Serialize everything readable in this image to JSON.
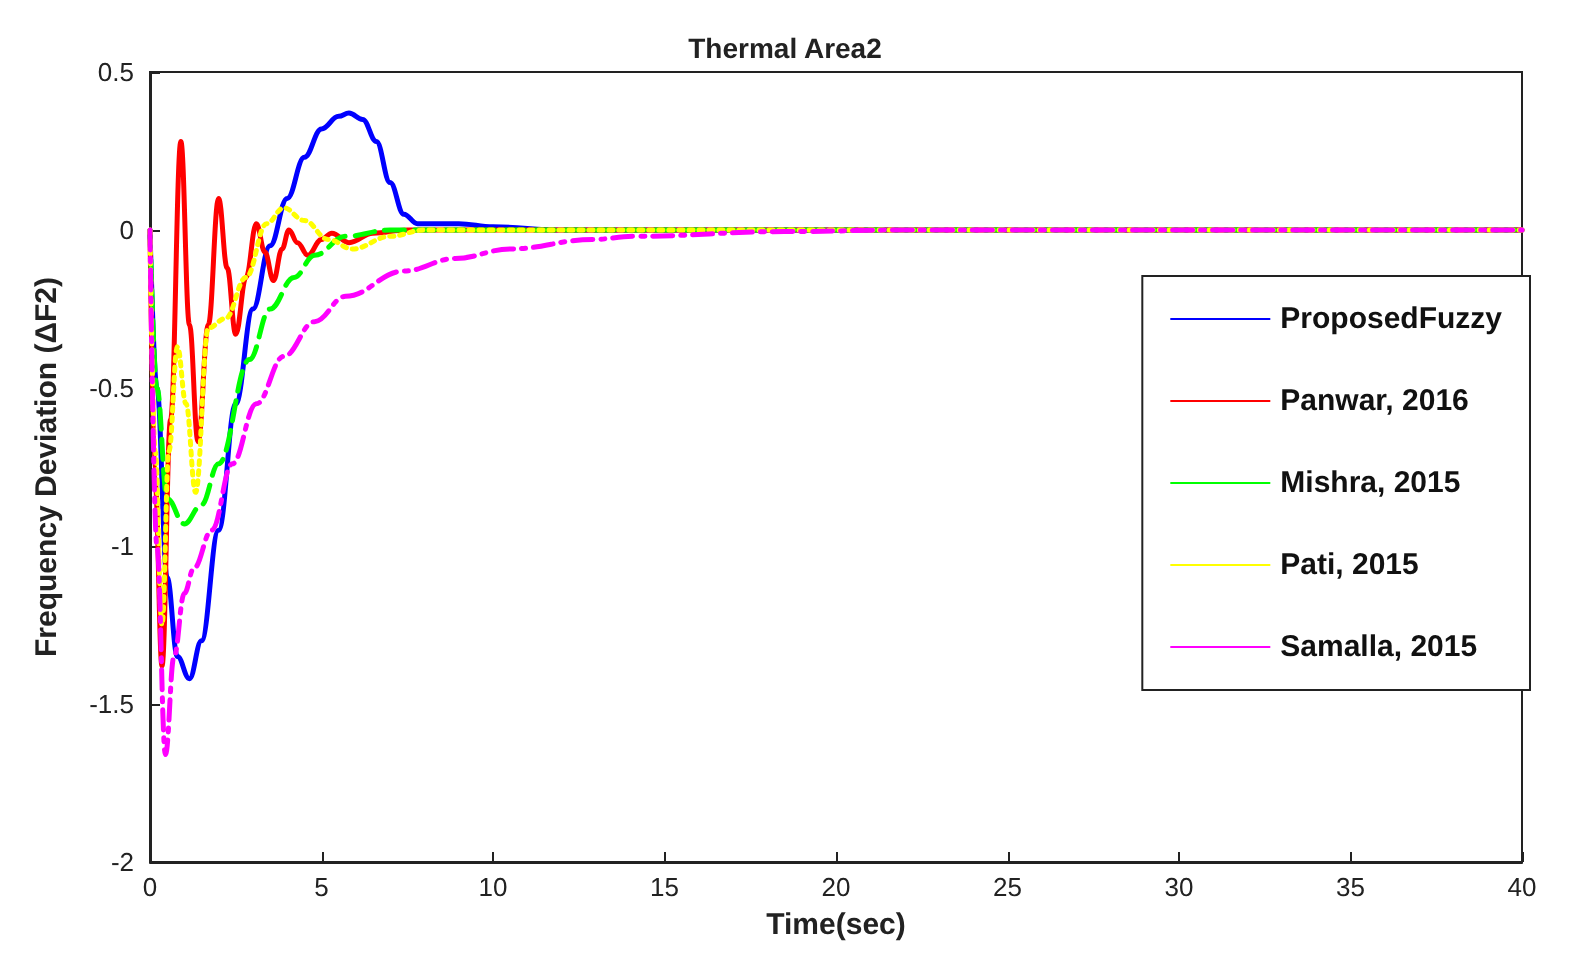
{
  "chart_data": {
    "type": "line",
    "title": "Thermal Area2",
    "xlabel": "Time(sec)",
    "ylabel": "Frequency Deviation (ΔF2)",
    "xlim": [
      0,
      40
    ],
    "xticks": [
      0,
      5,
      10,
      15,
      20,
      25,
      30,
      35,
      40
    ],
    "ylim": [
      -2,
      0.5
    ],
    "yticks": [
      -2,
      -1.5,
      -1,
      -0.5,
      0,
      0.5
    ],
    "grid": false,
    "legend": "right",
    "marker": "none",
    "series": [
      {
        "name": "ProposedFuzzy",
        "color": "#0000ff",
        "line_style": "solid",
        "x": [
          0,
          0.2,
          0.5,
          0.8,
          1.15,
          1.5,
          2,
          2.5,
          3,
          3.5,
          4,
          4.5,
          5,
          5.5,
          5.8,
          6.2,
          6.6,
          7,
          7.4,
          7.8,
          9,
          10,
          12,
          40
        ],
        "values": [
          0,
          -0.5,
          -1.1,
          -1.35,
          -1.42,
          -1.3,
          -0.95,
          -0.55,
          -0.25,
          -0.05,
          0.1,
          0.23,
          0.32,
          0.36,
          0.37,
          0.35,
          0.28,
          0.15,
          0.05,
          0.02,
          0.02,
          0.01,
          0,
          0
        ]
      },
      {
        "name": "Panwar, 2016",
        "color": "#ff0000",
        "line_style": "solid",
        "x": [
          0,
          0.15,
          0.35,
          0.6,
          0.9,
          1.15,
          1.4,
          1.7,
          2.0,
          2.25,
          2.5,
          2.8,
          3.1,
          3.35,
          3.6,
          3.85,
          4.05,
          4.3,
          4.6,
          5.0,
          5.3,
          5.8,
          6.5,
          7.5,
          40
        ],
        "values": [
          0,
          -0.8,
          -1.38,
          -0.6,
          0.28,
          -0.3,
          -0.67,
          -0.3,
          0.1,
          -0.12,
          -0.33,
          -0.15,
          0.02,
          -0.07,
          -0.16,
          -0.06,
          0,
          -0.04,
          -0.08,
          -0.03,
          -0.01,
          -0.04,
          -0.01,
          0,
          0
        ]
      },
      {
        "name": "Mishra, 2015",
        "color": "#00ff00",
        "line_style": "dashed",
        "x": [
          0,
          0.2,
          0.5,
          1.0,
          1.5,
          2.0,
          2.9,
          3.5,
          4.2,
          4.8,
          5.7,
          7,
          40
        ],
        "values": [
          0,
          -0.5,
          -0.85,
          -0.93,
          -0.87,
          -0.74,
          -0.41,
          -0.25,
          -0.15,
          -0.08,
          -0.02,
          0,
          0
        ]
      },
      {
        "name": "Pati, 2015",
        "color": "#ffff00",
        "line_style": "dotted",
        "x": [
          0,
          0.15,
          0.35,
          0.55,
          0.8,
          1.05,
          1.33,
          1.7,
          2.2,
          2.8,
          3.4,
          3.9,
          4.5,
          5.2,
          5.9,
          7,
          8,
          40
        ],
        "values": [
          0,
          -0.7,
          -1.25,
          -0.7,
          -0.37,
          -0.55,
          -0.83,
          -0.31,
          -0.28,
          -0.15,
          0.02,
          0.07,
          0.03,
          -0.03,
          -0.06,
          -0.02,
          0,
          0
        ]
      },
      {
        "name": "Samalla, 2015",
        "color": "#ff00ff",
        "line_style": "dashdot",
        "x": [
          0,
          0.2,
          0.45,
          0.7,
          1.0,
          1.28,
          1.8,
          2.4,
          3.1,
          3.9,
          4.8,
          5.7,
          7.4,
          8.9,
          10.5,
          12.9,
          14.1,
          18.5,
          22,
          40
        ],
        "values": [
          0,
          -1.0,
          -1.66,
          -1.35,
          -1.15,
          -1.07,
          -0.95,
          -0.74,
          -0.55,
          -0.4,
          -0.29,
          -0.21,
          -0.13,
          -0.09,
          -0.06,
          -0.03,
          -0.02,
          -0.005,
          0,
          0
        ]
      }
    ]
  }
}
